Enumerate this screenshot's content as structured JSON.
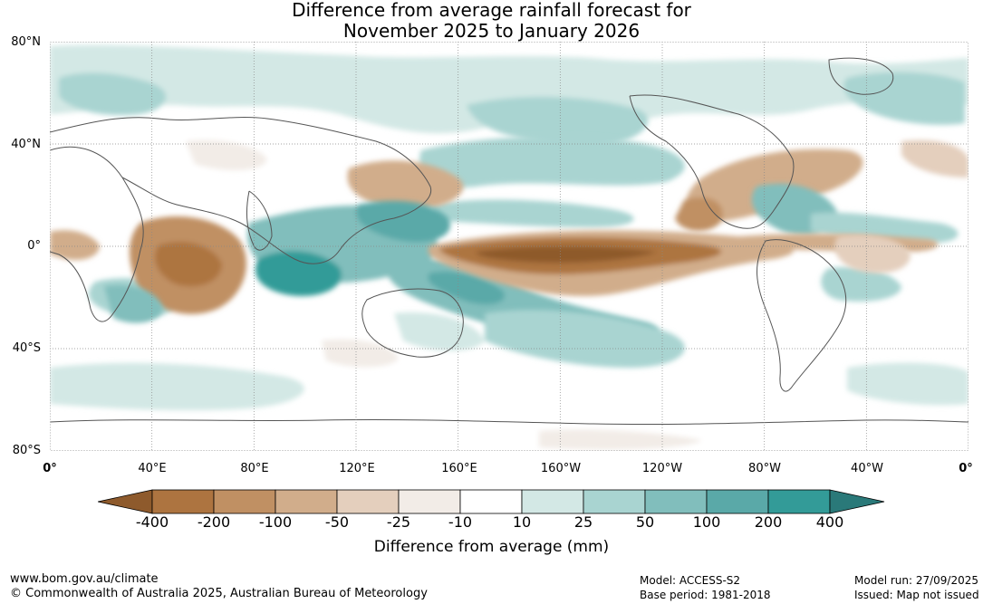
{
  "title": {
    "line1": "Difference from average rainfall forecast for",
    "line2": "November 2025 to January 2026"
  },
  "axes": {
    "lat_labels": [
      "80°N",
      "40°N",
      "0°",
      "40°S",
      "80°S"
    ],
    "lon_labels": [
      "0°",
      "40°E",
      "80°E",
      "120°E",
      "160°E",
      "160°W",
      "120°W",
      "80°W",
      "40°W",
      "0°"
    ]
  },
  "legend": {
    "ticks": [
      "-400",
      "-200",
      "-100",
      "-50",
      "-25",
      "-10",
      "10",
      "25",
      "50",
      "100",
      "200",
      "400"
    ],
    "colors": [
      "#8e5a2c",
      "#ad7440",
      "#c09063",
      "#d1ad8b",
      "#e4cfbd",
      "#f2ece7",
      "#ffffff",
      "#d3e8e5",
      "#a9d4d1",
      "#81bebc",
      "#5aa9a8",
      "#339b98",
      "#2a7979"
    ],
    "title": "Difference from average (mm)"
  },
  "footer": {
    "website": "www.bom.gov.au/climate",
    "copyright": "© Commonwealth of Australia 2025, Australian Bureau of Meteorology",
    "model": "Model: ACCESS-S2",
    "base_period": "Base period: 1981-2018",
    "model_run": "Model run: 27/09/2025",
    "issued": "Issued: Map not issued"
  }
}
